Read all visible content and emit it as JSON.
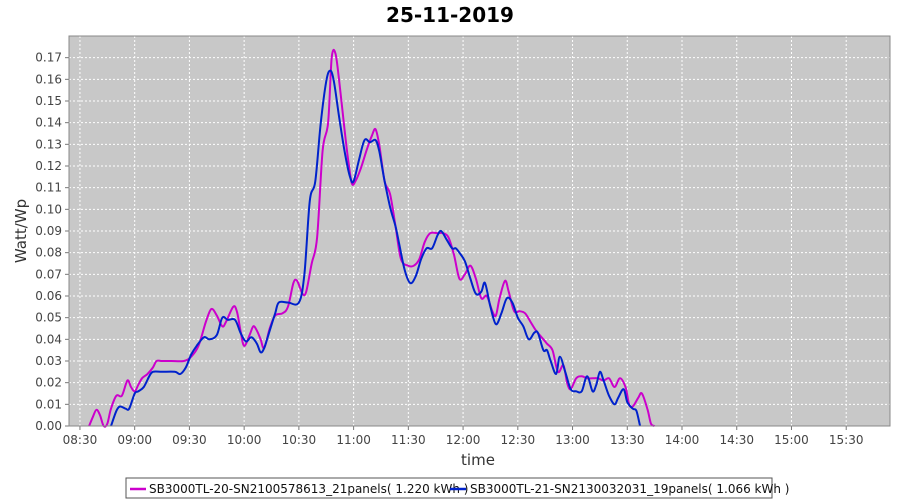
{
  "chart_data": {
    "type": "line",
    "title": "25-11-2019",
    "xlabel": "time",
    "ylabel": "Watt/Wp",
    "x_range": [
      "08:24",
      "15:54"
    ],
    "ylim": [
      0,
      0.18
    ],
    "x_ticks": [
      "08:30",
      "09:00",
      "09:30",
      "10:00",
      "10:30",
      "11:00",
      "11:30",
      "12:00",
      "12:30",
      "13:00",
      "13:30",
      "14:00",
      "14:30",
      "15:00",
      "15:30"
    ],
    "y_ticks": [
      "0.00",
      "0.01",
      "0.02",
      "0.03",
      "0.04",
      "0.05",
      "0.06",
      "0.07",
      "0.08",
      "0.09",
      "0.10",
      "0.11",
      "0.12",
      "0.13",
      "0.14",
      "0.15",
      "0.16",
      "0.17"
    ],
    "grid": true,
    "legend_position": "bottom",
    "background_color": "#c8c8c8",
    "series": [
      {
        "name": "SB3000TL-20-SN2100578613_21panels( 1.220 kWh )",
        "color": "#cc00cc",
        "points": [
          [
            "08:35",
            0.0
          ],
          [
            "08:37",
            0.004
          ],
          [
            "08:39",
            0.0075
          ],
          [
            "08:41",
            0.005
          ],
          [
            "08:43",
            0.0
          ],
          [
            "08:45",
            0.001
          ],
          [
            "08:47",
            0.008
          ],
          [
            "08:50",
            0.014
          ],
          [
            "08:53",
            0.014
          ],
          [
            "08:56",
            0.021
          ],
          [
            "08:58",
            0.018
          ],
          [
            "09:00",
            0.016
          ],
          [
            "09:02",
            0.019
          ],
          [
            "09:04",
            0.022
          ],
          [
            "09:07",
            0.024
          ],
          [
            "09:10",
            0.027
          ],
          [
            "09:12",
            0.03
          ],
          [
            "09:15",
            0.03
          ],
          [
            "09:20",
            0.03
          ],
          [
            "09:27",
            0.03
          ],
          [
            "09:31",
            0.032
          ],
          [
            "09:35",
            0.037
          ],
          [
            "09:39",
            0.048
          ],
          [
            "09:42",
            0.054
          ],
          [
            "09:45",
            0.051
          ],
          [
            "09:48",
            0.046
          ],
          [
            "09:50",
            0.048
          ],
          [
            "09:54",
            0.055
          ],
          [
            "09:56",
            0.053
          ],
          [
            "09:58",
            0.044
          ],
          [
            "10:00",
            0.037
          ],
          [
            "10:03",
            0.042
          ],
          [
            "10:05",
            0.046
          ],
          [
            "10:07",
            0.044
          ],
          [
            "10:09",
            0.04
          ],
          [
            "10:11",
            0.036
          ],
          [
            "10:14",
            0.045
          ],
          [
            "10:17",
            0.051
          ],
          [
            "10:21",
            0.052
          ],
          [
            "10:24",
            0.055
          ],
          [
            "10:27",
            0.066
          ],
          [
            "10:29",
            0.067
          ],
          [
            "10:32",
            0.061
          ],
          [
            "10:34",
            0.062
          ],
          [
            "10:37",
            0.075
          ],
          [
            "10:40",
            0.087
          ],
          [
            "10:43",
            0.127
          ],
          [
            "10:46",
            0.14
          ],
          [
            "10:48",
            0.17
          ],
          [
            "10:50",
            0.172
          ],
          [
            "10:52",
            0.16
          ],
          [
            "10:55",
            0.137
          ],
          [
            "10:57",
            0.123
          ],
          [
            "10:59",
            0.112
          ],
          [
            "11:01",
            0.113
          ],
          [
            "11:04",
            0.119
          ],
          [
            "11:07",
            0.127
          ],
          [
            "11:10",
            0.134
          ],
          [
            "11:12",
            0.137
          ],
          [
            "11:14",
            0.13
          ],
          [
            "11:17",
            0.113
          ],
          [
            "11:20",
            0.107
          ],
          [
            "11:23",
            0.092
          ],
          [
            "11:26",
            0.077
          ],
          [
            "11:30",
            0.074
          ],
          [
            "11:33",
            0.074
          ],
          [
            "11:36",
            0.077
          ],
          [
            "11:39",
            0.085
          ],
          [
            "11:42",
            0.089
          ],
          [
            "11:46",
            0.089
          ],
          [
            "11:49",
            0.089
          ],
          [
            "11:52",
            0.087
          ],
          [
            "11:55",
            0.079
          ],
          [
            "11:58",
            0.068
          ],
          [
            "12:01",
            0.07
          ],
          [
            "12:04",
            0.074
          ],
          [
            "12:07",
            0.068
          ],
          [
            "12:10",
            0.059
          ],
          [
            "12:13",
            0.06
          ],
          [
            "12:16",
            0.053
          ],
          [
            "12:18",
            0.051
          ],
          [
            "12:20",
            0.059
          ],
          [
            "12:23",
            0.067
          ],
          [
            "12:25",
            0.062
          ],
          [
            "12:28",
            0.053
          ],
          [
            "12:31",
            0.053
          ],
          [
            "12:34",
            0.052
          ],
          [
            "12:37",
            0.048
          ],
          [
            "12:40",
            0.044
          ],
          [
            "12:43",
            0.041
          ],
          [
            "12:46",
            0.038
          ],
          [
            "12:49",
            0.035
          ],
          [
            "12:52",
            0.025
          ],
          [
            "12:55",
            0.028
          ],
          [
            "12:57",
            0.02
          ],
          [
            "12:59",
            0.017
          ],
          [
            "13:02",
            0.022
          ],
          [
            "13:05",
            0.023
          ],
          [
            "13:08",
            0.022
          ],
          [
            "13:11",
            0.022
          ],
          [
            "13:14",
            0.022
          ],
          [
            "13:17",
            0.021
          ],
          [
            "13:20",
            0.022
          ],
          [
            "13:23",
            0.018
          ],
          [
            "13:26",
            0.022
          ],
          [
            "13:29",
            0.018
          ],
          [
            "13:31",
            0.01
          ],
          [
            "13:33",
            0.009
          ],
          [
            "13:36",
            0.013
          ],
          [
            "13:38",
            0.015
          ],
          [
            "13:41",
            0.008
          ],
          [
            "13:43",
            0.001
          ],
          [
            "13:45",
            0.0
          ]
        ]
      },
      {
        "name": "SB3000TL-21-SN2130032031_19panels( 1.066 kWh )",
        "color": "#0022cc",
        "points": [
          [
            "08:47",
            0.0
          ],
          [
            "08:50",
            0.007
          ],
          [
            "08:52",
            0.009
          ],
          [
            "08:55",
            0.008
          ],
          [
            "08:57",
            0.008
          ],
          [
            "09:00",
            0.015
          ],
          [
            "09:02",
            0.016
          ],
          [
            "09:05",
            0.018
          ],
          [
            "09:08",
            0.023
          ],
          [
            "09:10",
            0.025
          ],
          [
            "09:15",
            0.025
          ],
          [
            "09:22",
            0.025
          ],
          [
            "09:25",
            0.024
          ],
          [
            "09:28",
            0.027
          ],
          [
            "09:31",
            0.033
          ],
          [
            "09:34",
            0.037
          ],
          [
            "09:38",
            0.041
          ],
          [
            "09:41",
            0.04
          ],
          [
            "09:45",
            0.042
          ],
          [
            "09:48",
            0.05
          ],
          [
            "09:51",
            0.049
          ],
          [
            "09:55",
            0.049
          ],
          [
            "09:58",
            0.043
          ],
          [
            "10:01",
            0.039
          ],
          [
            "10:04",
            0.041
          ],
          [
            "10:07",
            0.038
          ],
          [
            "10:09",
            0.034
          ],
          [
            "10:11",
            0.036
          ],
          [
            "10:14",
            0.044
          ],
          [
            "10:17",
            0.052
          ],
          [
            "10:19",
            0.057
          ],
          [
            "10:24",
            0.057
          ],
          [
            "10:30",
            0.057
          ],
          [
            "10:33",
            0.07
          ],
          [
            "10:36",
            0.104
          ],
          [
            "10:39",
            0.113
          ],
          [
            "10:42",
            0.14
          ],
          [
            "10:45",
            0.159
          ],
          [
            "10:47",
            0.164
          ],
          [
            "10:49",
            0.16
          ],
          [
            "10:52",
            0.143
          ],
          [
            "10:55",
            0.127
          ],
          [
            "10:58",
            0.115
          ],
          [
            "11:00",
            0.113
          ],
          [
            "11:03",
            0.123
          ],
          [
            "11:06",
            0.132
          ],
          [
            "11:09",
            0.131
          ],
          [
            "11:12",
            0.132
          ],
          [
            "11:14",
            0.127
          ],
          [
            "11:17",
            0.113
          ],
          [
            "11:20",
            0.101
          ],
          [
            "11:23",
            0.092
          ],
          [
            "11:25",
            0.084
          ],
          [
            "11:28",
            0.072
          ],
          [
            "11:31",
            0.066
          ],
          [
            "11:34",
            0.069
          ],
          [
            "11:37",
            0.077
          ],
          [
            "11:40",
            0.082
          ],
          [
            "11:43",
            0.082
          ],
          [
            "11:46",
            0.088
          ],
          [
            "11:48",
            0.09
          ],
          [
            "11:51",
            0.086
          ],
          [
            "11:54",
            0.082
          ],
          [
            "11:56",
            0.082
          ],
          [
            "11:58",
            0.08
          ],
          [
            "12:01",
            0.076
          ],
          [
            "12:04",
            0.068
          ],
          [
            "12:07",
            0.061
          ],
          [
            "12:10",
            0.062
          ],
          [
            "12:12",
            0.066
          ],
          [
            "12:15",
            0.055
          ],
          [
            "12:18",
            0.047
          ],
          [
            "12:21",
            0.052
          ],
          [
            "12:24",
            0.059
          ],
          [
            "12:27",
            0.057
          ],
          [
            "12:30",
            0.05
          ],
          [
            "12:33",
            0.046
          ],
          [
            "12:36",
            0.04
          ],
          [
            "12:39",
            0.043
          ],
          [
            "12:41",
            0.043
          ],
          [
            "12:44",
            0.035
          ],
          [
            "12:46",
            0.035
          ],
          [
            "12:48",
            0.03
          ],
          [
            "12:51",
            0.024
          ],
          [
            "12:53",
            0.032
          ],
          [
            "12:56",
            0.025
          ],
          [
            "12:59",
            0.017
          ],
          [
            "13:02",
            0.016
          ],
          [
            "13:05",
            0.016
          ],
          [
            "13:08",
            0.023
          ],
          [
            "13:11",
            0.016
          ],
          [
            "13:13",
            0.019
          ],
          [
            "13:15",
            0.025
          ],
          [
            "13:17",
            0.021
          ],
          [
            "13:20",
            0.014
          ],
          [
            "13:23",
            0.01
          ],
          [
            "13:25",
            0.013
          ],
          [
            "13:28",
            0.017
          ],
          [
            "13:30",
            0.011
          ],
          [
            "13:33",
            0.008
          ],
          [
            "13:35",
            0.007
          ],
          [
            "13:37",
            0.0
          ]
        ]
      }
    ]
  }
}
